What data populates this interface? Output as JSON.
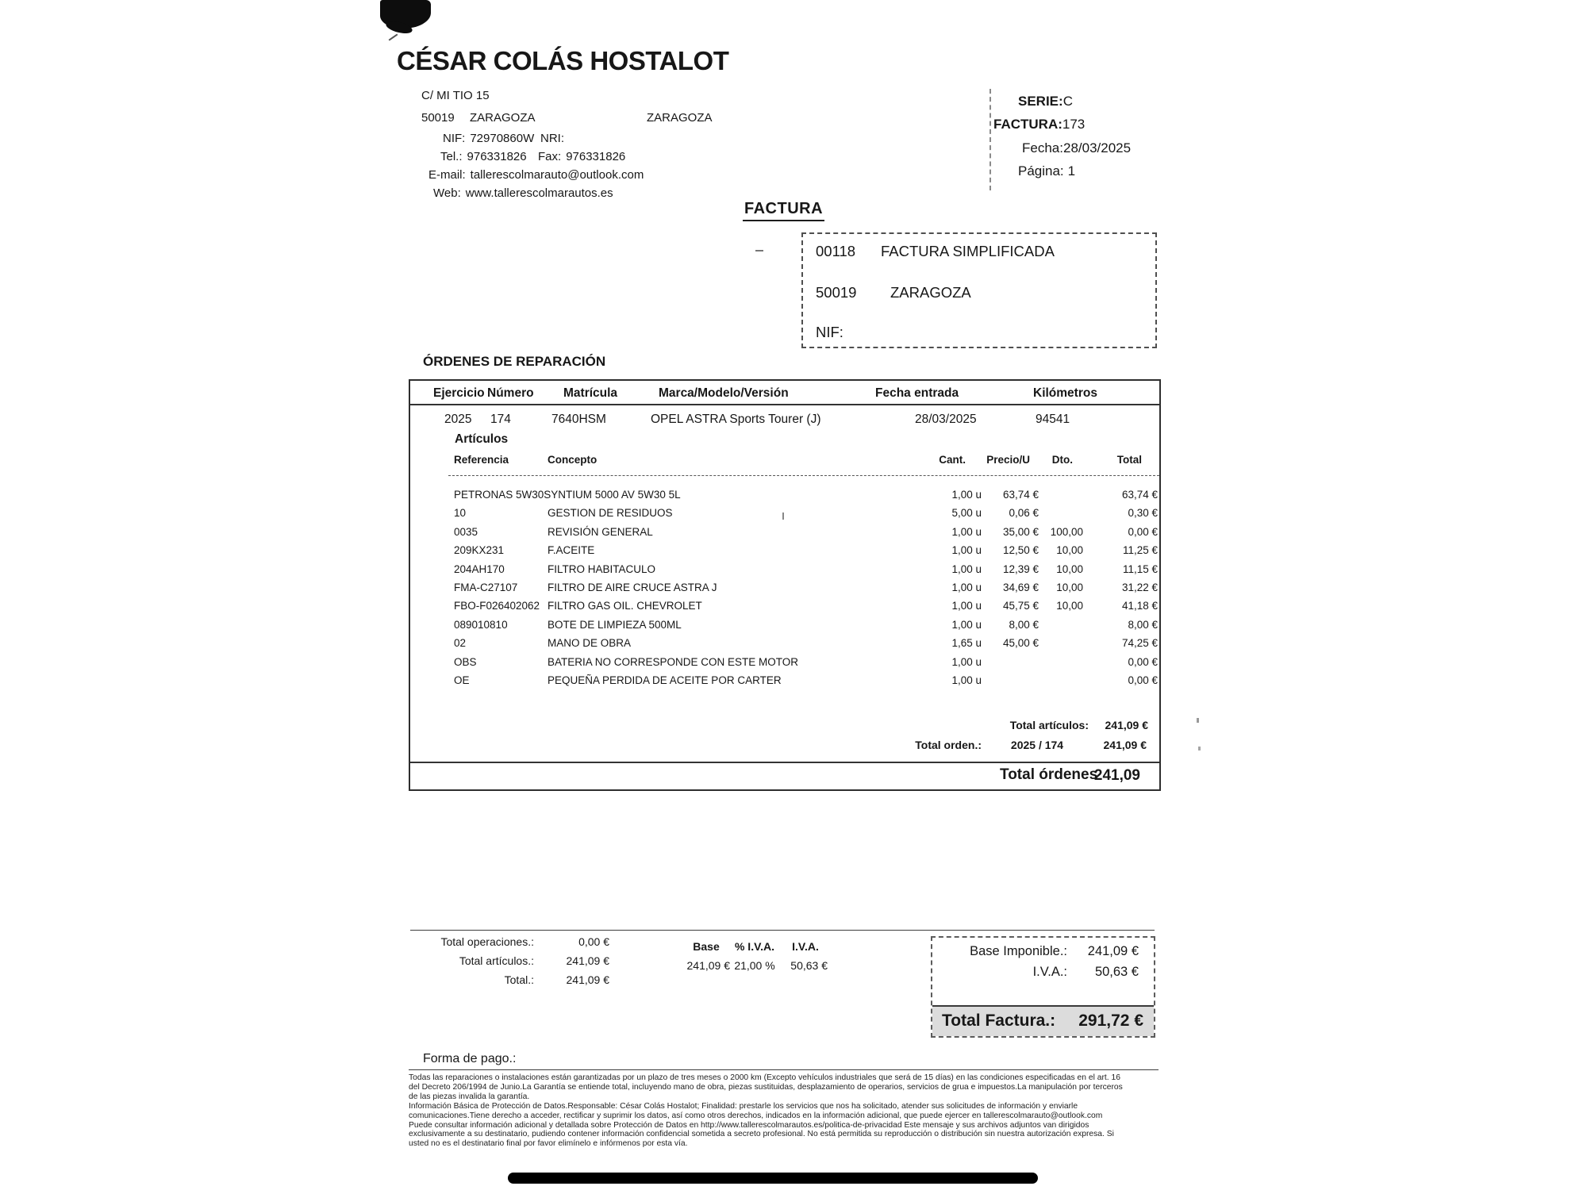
{
  "company": {
    "name": "CÉSAR COLÁS HOSTALOT",
    "street": "C/ MI TIO 15",
    "postal_code": "50019",
    "city": "ZARAGOZA",
    "province": "ZARAGOZA",
    "nif_label": "NIF:",
    "nif": "72970860W",
    "nri_label": "NRI:",
    "tel_label": "Tel.:",
    "tel": "976331826",
    "fax_label": "Fax:",
    "fax": "976331826",
    "email_label": "E-mail:",
    "email": "tallerescolmarauto@outlook.com",
    "web_label": "Web:",
    "web": "www.tallerescolmarautos.es"
  },
  "invoice_meta": {
    "serie_label": "SERIE:",
    "serie": "C",
    "factura_label": "FACTURA:",
    "factura": "173",
    "fecha_label": "Fecha:",
    "fecha": "28/03/2025",
    "pagina_label": "Página:",
    "pagina": "1"
  },
  "document_title": "FACTURA",
  "customer_box": {
    "code": "00118",
    "name": "FACTURA SIMPLIFICADA",
    "postal_code": "50019",
    "city": "ZARAGOZA",
    "nif_label": "NIF:"
  },
  "orders": {
    "section_title": "ÓRDENES DE REPARACIÓN",
    "headers": {
      "ejercicio": "Ejercicio",
      "numero": "Número",
      "matricula": "Matrícula",
      "marca": "Marca/Modelo/Versión",
      "fecha_entrada": "Fecha entrada",
      "kilometros": "Kilómetros"
    },
    "order": {
      "ejercicio": "2025",
      "numero": "174",
      "matricula": "7640HSM",
      "marca": "OPEL ASTRA Sports Tourer (J)",
      "fecha_entrada": "28/03/2025",
      "kilometros": "94541"
    },
    "articles_title": "Artículos",
    "article_headers": {
      "referencia": "Referencia",
      "concepto": "Concepto",
      "cant": "Cant.",
      "precio": "Precio/U",
      "dto": "Dto.",
      "total": "Total"
    },
    "articles": [
      {
        "referencia": "PETRONAS 5W30",
        "concepto": "SYNTIUM 5000 AV 5W30 5L",
        "cant": "1,00 u",
        "precio": "63,74 €",
        "dto": "",
        "total": "63,74 €"
      },
      {
        "referencia": "10",
        "concepto": "GESTION DE RESIDUOS",
        "cant": "5,00 u",
        "precio": "0,06 €",
        "dto": "",
        "total": "0,30 €"
      },
      {
        "referencia": "0035",
        "concepto": "REVISIÓN GENERAL",
        "cant": "1,00 u",
        "precio": "35,00 €",
        "dto": "100,00",
        "total": "0,00 €"
      },
      {
        "referencia": "209KX231",
        "concepto": "F.ACEITE",
        "cant": "1,00 u",
        "precio": "12,50 €",
        "dto": "10,00",
        "total": "11,25 €"
      },
      {
        "referencia": "204AH170",
        "concepto": "FILTRO HABITACULO",
        "cant": "1,00 u",
        "precio": "12,39 €",
        "dto": "10,00",
        "total": "11,15 €"
      },
      {
        "referencia": "FMA-C27107",
        "concepto": "FILTRO DE AIRE CRUCE ASTRA J",
        "cant": "1,00 u",
        "precio": "34,69 €",
        "dto": "10,00",
        "total": "31,22 €"
      },
      {
        "referencia": "FBO-F026402062",
        "concepto": "FILTRO GAS OIL. CHEVROLET",
        "cant": "1,00 u",
        "precio": "45,75 €",
        "dto": "10,00",
        "total": "41,18 €"
      },
      {
        "referencia": "089010810",
        "concepto": "BOTE DE LIMPIEZA 500ML",
        "cant": "1,00 u",
        "precio": "8,00 €",
        "dto": "",
        "total": "8,00 €"
      },
      {
        "referencia": "02",
        "concepto": "MANO DE OBRA",
        "cant": "1,65 u",
        "precio": "45,00 €",
        "dto": "",
        "total": "74,25 €"
      },
      {
        "referencia": "OBS",
        "concepto": "BATERIA NO CORRESPONDE CON ESTE MOTOR",
        "cant": "1,00 u",
        "precio": "",
        "dto": "",
        "total": "0,00 €"
      },
      {
        "referencia": "OE",
        "concepto": "PEQUEÑA PERDIDA DE ACEITE POR CARTER",
        "cant": "1,00 u",
        "precio": "",
        "dto": "",
        "total": "0,00 €"
      }
    ],
    "totals": {
      "total_articulos_label": "Total artículos:",
      "total_articulos": "241,09 €",
      "total_orden_label": "Total orden.:",
      "orden_ref": "2025 / 174",
      "total_orden": "241,09 €",
      "total_ordenes_label": "Total órdenes",
      "total_ordenes": "241,09"
    }
  },
  "summary": {
    "left_rows": [
      {
        "label": "Total operaciones.:",
        "value": "0,00 €"
      },
      {
        "label": "Total artículos.:",
        "value": "241,09 €"
      },
      {
        "label": "Total.:",
        "value": "241,09 €"
      }
    ],
    "iva": {
      "base_header": "Base",
      "pct_header": "% I.V.A.",
      "iva_header": "I.V.A.",
      "base": "241,09 €",
      "pct": "21,00 %",
      "iva": "50,63 €"
    },
    "totals_box": {
      "base_label": "Base Imponible.:",
      "base": "241,09 €",
      "iva_label": "I.V.A.:",
      "iva": "50,63 €",
      "total_label": "Total Factura.:",
      "total": "291,72 €"
    }
  },
  "payment": {
    "label": "Forma de pago.:"
  },
  "legal_lines": [
    "Todas las reparaciones o instalaciones están garantizadas por un plazo de tres meses o 2000 km (Excepto vehículos industriales que será de 15 días) en las condiciones especificadas en el art. 16",
    "del Decreto 206/1994 de Junio.La Garantía se entiende total, incluyendo mano de obra, piezas sustituidas, desplazamiento de operarios, servicios de grua e impuestos.La manipulación por terceros",
    "de las piezas invalida la garantía.",
    "Información Básica de Protección de Datos.Responsable: César Colás Hostalot; Finalidad: prestarle los servicios que nos ha solicitado, atender sus solicitudes de información y enviarle",
    "comunicaciones.Tiene derecho a acceder, rectificar y suprimir los datos, así como otros derechos, indicados en la información adicional, que puede ejercer en tallerescolmarauto@outlook.com",
    "Puede consultar información adicional y detallada sobre Protección de Datos en http://www.tallerescolmarautos.es/politica-de-privacidad Este mensaje y sus archivos adjuntos van dirigidos",
    "exclusivamente a su destinatario, pudiendo contener información confidencial sometida a secreto profesional. No está permitida su reproducción o distribución sin nuestra autorización expresa. Si",
    "usted no es el destinatario final por favor elimínelo e infórmenos por esta vía."
  ]
}
